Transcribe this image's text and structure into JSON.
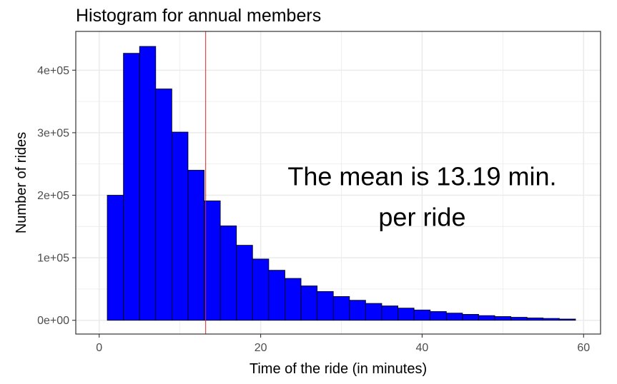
{
  "chart_data": {
    "type": "bar",
    "title": "Histogram for annual members",
    "xlabel": "Time of the ride (in minutes)",
    "ylabel": "Number of rides",
    "xlim": [
      -2.9,
      62.1
    ],
    "ylim": [
      -22000,
      462000
    ],
    "x_ticks": [
      0,
      20,
      40,
      60
    ],
    "x_tick_labels": [
      "0",
      "20",
      "40",
      "60"
    ],
    "y_ticks": [
      0,
      100000,
      200000,
      300000,
      400000
    ],
    "y_tick_labels": [
      "0e+00",
      "1e+05",
      "2e+05",
      "3e+05",
      "4e+05"
    ],
    "grid": true,
    "bins": [
      {
        "x0": 1,
        "x1": 3,
        "count": 200000
      },
      {
        "x0": 3,
        "x1": 5,
        "count": 427000
      },
      {
        "x0": 5,
        "x1": 7,
        "count": 438000
      },
      {
        "x0": 7,
        "x1": 9,
        "count": 370000
      },
      {
        "x0": 9,
        "x1": 11,
        "count": 301000
      },
      {
        "x0": 11,
        "x1": 13,
        "count": 240000
      },
      {
        "x0": 13,
        "x1": 15,
        "count": 191000
      },
      {
        "x0": 15,
        "x1": 17,
        "count": 151000
      },
      {
        "x0": 17,
        "x1": 19,
        "count": 120000
      },
      {
        "x0": 19,
        "x1": 21,
        "count": 98000
      },
      {
        "x0": 21,
        "x1": 23,
        "count": 80000
      },
      {
        "x0": 23,
        "x1": 25,
        "count": 67000
      },
      {
        "x0": 25,
        "x1": 27,
        "count": 55000
      },
      {
        "x0": 27,
        "x1": 29,
        "count": 46000
      },
      {
        "x0": 29,
        "x1": 31,
        "count": 38000
      },
      {
        "x0": 31,
        "x1": 33,
        "count": 32000
      },
      {
        "x0": 33,
        "x1": 35,
        "count": 27000
      },
      {
        "x0": 35,
        "x1": 37,
        "count": 23000
      },
      {
        "x0": 37,
        "x1": 39,
        "count": 19500
      },
      {
        "x0": 39,
        "x1": 41,
        "count": 16500
      },
      {
        "x0": 41,
        "x1": 43,
        "count": 14000
      },
      {
        "x0": 43,
        "x1": 45,
        "count": 11500
      },
      {
        "x0": 45,
        "x1": 47,
        "count": 9500
      },
      {
        "x0": 47,
        "x1": 49,
        "count": 7500
      },
      {
        "x0": 49,
        "x1": 51,
        "count": 6000
      },
      {
        "x0": 51,
        "x1": 53,
        "count": 4800
      },
      {
        "x0": 53,
        "x1": 55,
        "count": 3800
      },
      {
        "x0": 55,
        "x1": 57,
        "count": 3000
      },
      {
        "x0": 57,
        "x1": 59,
        "count": 2000
      }
    ],
    "mean_line": {
      "value": 13.19,
      "color": "#d62728"
    },
    "annotation": {
      "lines": [
        "The mean is 13.19 min.",
        "per ride"
      ],
      "x": 40,
      "y": 200000
    },
    "colors": {
      "bar_fill": "#0000ff",
      "bar_stroke": "#000000",
      "panel_border": "#333333",
      "grid": "#ebebeb"
    }
  }
}
